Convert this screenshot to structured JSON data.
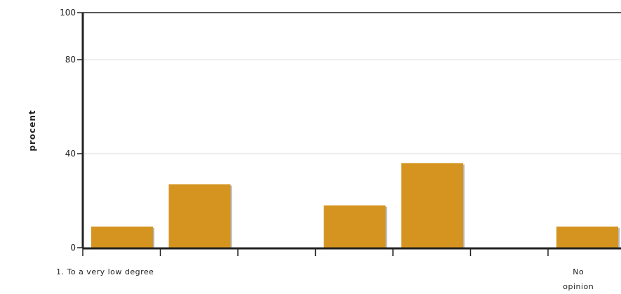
{
  "chart_data": {
    "type": "bar",
    "ylabel": "procent",
    "ylim": [
      0,
      100
    ],
    "yticks": [
      0,
      40,
      80,
      100
    ],
    "grid": true,
    "categories": [
      "1. To a very low degree",
      "",
      "",
      "",
      "",
      "",
      "No opinion"
    ],
    "category_label_lines": [
      [
        "1. To a very low degree"
      ],
      [],
      [],
      [],
      [],
      [],
      [
        "No",
        "opinion"
      ]
    ],
    "values": [
      9,
      27,
      0,
      18,
      36,
      0,
      9
    ],
    "bar_color": "#d4941f",
    "shadow_color": "#b5b5b5"
  }
}
